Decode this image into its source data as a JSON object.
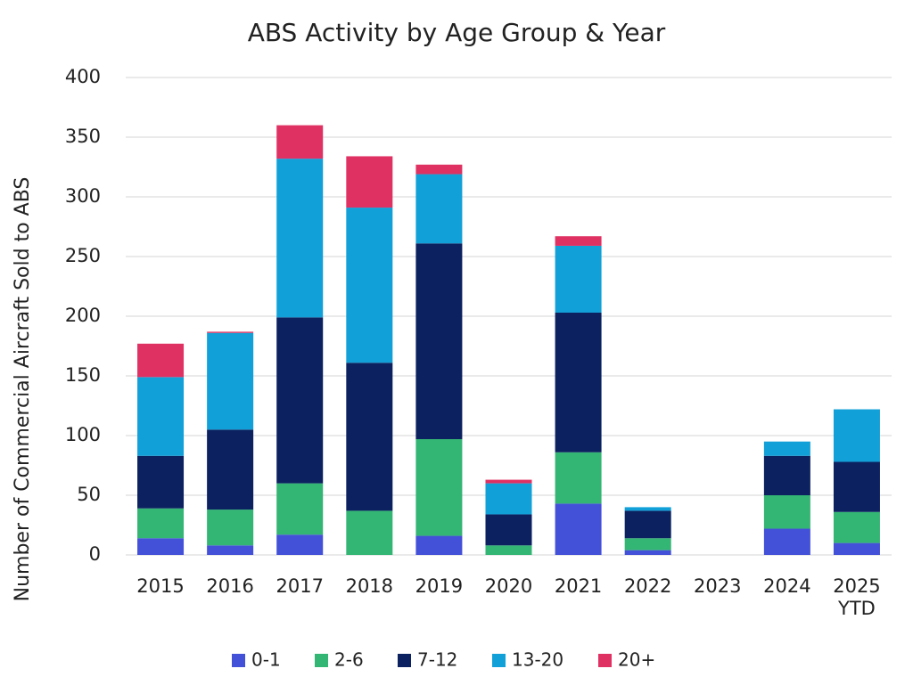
{
  "chart_data": {
    "type": "stacked_bar",
    "title": "ABS Activity by Age Group & Year",
    "y_label": "Number of Commercial Aircraft Sold to ABS",
    "categories": [
      "2015",
      "2016",
      "2017",
      "2018",
      "2019",
      "2020",
      "2021",
      "2022",
      "2023",
      "2024",
      "2025 YTD"
    ],
    "series": [
      {
        "name": "0-1",
        "color": "#4350d8",
        "values": [
          14,
          8,
          17,
          0,
          16,
          0,
          43,
          4,
          0,
          22,
          10
        ]
      },
      {
        "name": "2-6",
        "color": "#33b573",
        "values": [
          25,
          30,
          43,
          37,
          81,
          8,
          43,
          10,
          0,
          28,
          26
        ]
      },
      {
        "name": "7-12",
        "color": "#0b2160",
        "values": [
          44,
          67,
          139,
          124,
          164,
          26,
          117,
          23,
          0,
          33,
          42
        ]
      },
      {
        "name": "13-20",
        "color": "#11a0d8",
        "values": [
          66,
          81,
          133,
          130,
          58,
          26,
          56,
          3,
          0,
          12,
          44
        ]
      },
      {
        "name": "20+",
        "color": "#e03163",
        "values": [
          28,
          1,
          28,
          43,
          8,
          3,
          8,
          0,
          0,
          0,
          0
        ]
      }
    ],
    "ylim": [
      0,
      400
    ],
    "yticks": [
      0,
      50,
      100,
      150,
      200,
      250,
      300,
      350,
      400
    ],
    "grid": true,
    "legend": "bottom"
  }
}
